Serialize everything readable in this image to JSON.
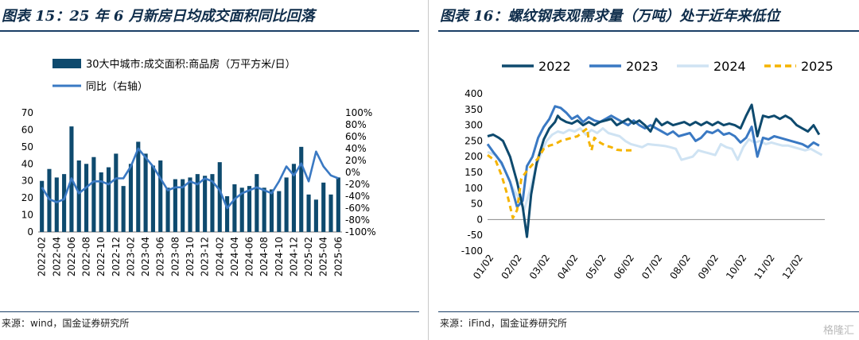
{
  "left": {
    "title": "图表 15：25 年 6 月新房日均成交面积同比回落",
    "source": "来源：wind，国金证券研究所",
    "chart_data": {
      "type": "bar",
      "categories": [
        "2022-02",
        "2022-03",
        "2022-04",
        "2022-05",
        "2022-06",
        "2022-07",
        "2022-08",
        "2022-09",
        "2022-10",
        "2022-11",
        "2022-12",
        "2023-01",
        "2023-02",
        "2023-03",
        "2023-04",
        "2023-05",
        "2023-06",
        "2023-07",
        "2023-08",
        "2023-09",
        "2023-10",
        "2023-11",
        "2023-12",
        "2024-01",
        "2024-02",
        "2024-03",
        "2024-04",
        "2024-05",
        "2024-06",
        "2024-07",
        "2024-08",
        "2024-09",
        "2024-10",
        "2024-11",
        "2024-12",
        "2025-01",
        "2025-02",
        "2025-03",
        "2025-04",
        "2025-05",
        "2025-06"
      ],
      "tick_labels": [
        "2022-02",
        "2022-04",
        "2022-06",
        "2022-08",
        "2022-10",
        "2022-12",
        "2023-02",
        "2023-04",
        "2023-06",
        "2023-08",
        "2023-10",
        "2023-12",
        "2024-02",
        "2024-04",
        "2024-06",
        "2024-08",
        "2024-10",
        "2024-12",
        "2025-02",
        "2025-04",
        "2025-06"
      ],
      "series": [
        {
          "name": "30大中城市:成交面积:商品房（万平方米/日）",
          "type": "bar",
          "axis": "left",
          "color": "#0e4a6e",
          "values": [
            30,
            37,
            32,
            34,
            62,
            42,
            40,
            44,
            35,
            38,
            46,
            27,
            40,
            53,
            46,
            39,
            42,
            26,
            31,
            31,
            32,
            34,
            33,
            34,
            41,
            21,
            28,
            26,
            27,
            34,
            26,
            25,
            24,
            32,
            40,
            50,
            22,
            19,
            29,
            22,
            32
          ]
        },
        {
          "name": "同比（右轴）",
          "type": "line",
          "axis": "right",
          "color": "#3a79c3",
          "values": [
            -25,
            -45,
            -50,
            -45,
            -10,
            -35,
            -25,
            -15,
            -15,
            -20,
            -10,
            -10,
            10,
            40,
            25,
            10,
            -10,
            -30,
            -25,
            -25,
            -15,
            -20,
            -10,
            -15,
            -30,
            -60,
            -45,
            -35,
            -30,
            -25,
            -30,
            -35,
            -15,
            10,
            -5,
            15,
            -15,
            35,
            10,
            -5,
            -10
          ]
        }
      ],
      "y_left": {
        "range": [
          0,
          70
        ],
        "ticks": [
          "0",
          "10",
          "20",
          "30",
          "40",
          "50",
          "60",
          "70"
        ]
      },
      "y_right": {
        "range": [
          -100,
          100
        ],
        "ticks": [
          "-100%",
          "-80%",
          "-60%",
          "-40%",
          "-20%",
          "0%",
          "20%",
          "40%",
          "60%",
          "80%",
          "100%"
        ]
      },
      "legend_placement": "top-left"
    }
  },
  "right": {
    "title": "图表 16：螺纹钢表观需求量（万吨）处于近年来低位",
    "source": "来源：iFind，国金证券研究所",
    "chart_data": {
      "type": "line",
      "x_ticks": [
        "01/02",
        "02/02",
        "03/02",
        "04/02",
        "05/02",
        "06/02",
        "07/02",
        "08/02",
        "09/02",
        "10/02",
        "11/02",
        "12/02"
      ],
      "y": {
        "range": [
          -100,
          400
        ],
        "ticks": [
          "-100",
          "-50",
          "0",
          "50",
          "100",
          "150",
          "200",
          "250",
          "300",
          "350",
          "400"
        ]
      },
      "series": [
        {
          "name": "2022",
          "color": "#0e4a6e",
          "dash": "solid",
          "points": [
            [
              0,
              265
            ],
            [
              0.2,
              270
            ],
            [
              0.4,
              260
            ],
            [
              0.55,
              250
            ],
            [
              0.8,
              200
            ],
            [
              1.05,
              120
            ],
            [
              1.25,
              40
            ],
            [
              1.4,
              -55
            ],
            [
              1.55,
              80
            ],
            [
              1.75,
              180
            ],
            [
              2,
              255
            ],
            [
              2.2,
              290
            ],
            [
              2.4,
              310
            ],
            [
              2.5,
              330
            ],
            [
              2.6,
              320
            ],
            [
              2.8,
              310
            ],
            [
              3,
              305
            ],
            [
              3.2,
              315
            ],
            [
              3.4,
              300
            ],
            [
              3.6,
              310
            ],
            [
              3.8,
              300
            ],
            [
              4,
              310
            ],
            [
              4.2,
              315
            ],
            [
              4.4,
              320
            ],
            [
              4.6,
              300
            ],
            [
              4.8,
              310
            ],
            [
              5,
              320
            ],
            [
              5.2,
              305
            ],
            [
              5.4,
              315
            ],
            [
              5.6,
              300
            ],
            [
              5.8,
              280
            ],
            [
              6,
              320
            ],
            [
              6.2,
              300
            ],
            [
              6.4,
              310
            ],
            [
              6.6,
              300
            ],
            [
              6.8,
              305
            ],
            [
              7,
              310
            ],
            [
              7.2,
              300
            ],
            [
              7.4,
              310
            ],
            [
              7.6,
              300
            ],
            [
              7.8,
              310
            ],
            [
              8,
              300
            ],
            [
              8.2,
              310
            ],
            [
              8.4,
              300
            ],
            [
              8.6,
              305
            ],
            [
              8.8,
              300
            ],
            [
              9,
              290
            ],
            [
              9.2,
              330
            ],
            [
              9.4,
              365
            ],
            [
              9.6,
              265
            ],
            [
              9.8,
              330
            ],
            [
              10,
              325
            ],
            [
              10.2,
              330
            ],
            [
              10.4,
              320
            ],
            [
              10.6,
              330
            ],
            [
              10.8,
              320
            ],
            [
              11,
              300
            ],
            [
              11.2,
              290
            ],
            [
              11.4,
              280
            ],
            [
              11.6,
              300
            ],
            [
              11.8,
              270
            ]
          ]
        },
        {
          "name": "2023",
          "color": "#3a79c3",
          "dash": "solid",
          "points": [
            [
              0,
              240
            ],
            [
              0.2,
              215
            ],
            [
              0.5,
              180
            ],
            [
              0.8,
              120
            ],
            [
              1.05,
              40
            ],
            [
              1.25,
              60
            ],
            [
              1.4,
              170
            ],
            [
              1.6,
              200
            ],
            [
              1.8,
              260
            ],
            [
              2,
              295
            ],
            [
              2.2,
              320
            ],
            [
              2.4,
              360
            ],
            [
              2.6,
              355
            ],
            [
              2.8,
              340
            ],
            [
              3,
              320
            ],
            [
              3.2,
              330
            ],
            [
              3.4,
              310
            ],
            [
              3.6,
              325
            ],
            [
              3.8,
              315
            ],
            [
              4,
              310
            ],
            [
              4.2,
              320
            ],
            [
              4.4,
              330
            ],
            [
              4.6,
              320
            ],
            [
              4.8,
              310
            ],
            [
              5,
              300
            ],
            [
              5.2,
              315
            ],
            [
              5.4,
              300
            ],
            [
              5.6,
              290
            ],
            [
              5.8,
              300
            ],
            [
              6,
              290
            ],
            [
              6.2,
              280
            ],
            [
              6.4,
              270
            ],
            [
              6.6,
              280
            ],
            [
              6.8,
              265
            ],
            [
              7,
              270
            ],
            [
              7.2,
              275
            ],
            [
              7.4,
              250
            ],
            [
              7.6,
              260
            ],
            [
              7.8,
              280
            ],
            [
              8,
              275
            ],
            [
              8.2,
              285
            ],
            [
              8.4,
              270
            ],
            [
              8.6,
              275
            ],
            [
              8.8,
              265
            ],
            [
              9,
              245
            ],
            [
              9.2,
              260
            ],
            [
              9.4,
              295
            ],
            [
              9.6,
              200
            ],
            [
              9.8,
              260
            ],
            [
              10,
              255
            ],
            [
              10.2,
              265
            ],
            [
              10.4,
              260
            ],
            [
              10.6,
              255
            ],
            [
              10.8,
              250
            ],
            [
              11,
              245
            ],
            [
              11.2,
              240
            ],
            [
              11.4,
              230
            ],
            [
              11.6,
              245
            ],
            [
              11.8,
              235
            ]
          ]
        },
        {
          "name": "2024",
          "color": "#cfe3f3",
          "dash": "solid",
          "points": [
            [
              0,
              215
            ],
            [
              0.3,
              205
            ],
            [
              0.6,
              160
            ],
            [
              0.9,
              100
            ],
            [
              1.1,
              70
            ],
            [
              1.3,
              30
            ],
            [
              1.5,
              90
            ],
            [
              1.7,
              160
            ],
            [
              1.9,
              210
            ],
            [
              2.1,
              250
            ],
            [
              2.3,
              270
            ],
            [
              2.5,
              280
            ],
            [
              2.7,
              275
            ],
            [
              2.9,
              285
            ],
            [
              3.1,
              280
            ],
            [
              3.3,
              290
            ],
            [
              3.5,
              270
            ],
            [
              3.7,
              285
            ],
            [
              3.9,
              275
            ],
            [
              4.1,
              290
            ],
            [
              4.3,
              275
            ],
            [
              4.5,
              270
            ],
            [
              4.7,
              265
            ],
            [
              4.9,
              250
            ],
            [
              5.1,
              240
            ],
            [
              5.3,
              235
            ],
            [
              5.5,
              230
            ],
            [
              5.7,
              240
            ],
            [
              5.9,
              238
            ],
            [
              6.1,
              236
            ],
            [
              6.3,
              234
            ],
            [
              6.5,
              230
            ],
            [
              6.7,
              225
            ],
            [
              6.9,
              190
            ],
            [
              7.1,
              195
            ],
            [
              7.3,
              200
            ],
            [
              7.5,
              220
            ],
            [
              7.7,
              215
            ],
            [
              7.9,
              210
            ],
            [
              8.1,
              205
            ],
            [
              8.3,
              240
            ],
            [
              8.5,
              230
            ],
            [
              8.7,
              225
            ],
            [
              8.9,
              190
            ],
            [
              9.1,
              230
            ],
            [
              9.3,
              255
            ],
            [
              9.5,
              245
            ],
            [
              9.7,
              250
            ],
            [
              9.9,
              240
            ],
            [
              10.1,
              245
            ],
            [
              10.3,
              240
            ],
            [
              10.5,
              235
            ],
            [
              10.7,
              235
            ],
            [
              10.9,
              230
            ],
            [
              11.1,
              225
            ],
            [
              11.3,
              220
            ],
            [
              11.5,
              225
            ],
            [
              11.7,
              215
            ],
            [
              11.9,
              205
            ]
          ]
        },
        {
          "name": "2025",
          "color": "#f5b400",
          "dash": "dashed",
          "points": [
            [
              0,
              205
            ],
            [
              0.3,
              185
            ],
            [
              0.5,
              140
            ],
            [
              0.7,
              80
            ],
            [
              0.9,
              5
            ],
            [
              1.05,
              30
            ],
            [
              1.2,
              130
            ],
            [
              1.4,
              155
            ],
            [
              1.6,
              175
            ],
            [
              1.8,
              195
            ],
            [
              2,
              225
            ],
            [
              2.2,
              235
            ],
            [
              2.4,
              240
            ],
            [
              2.6,
              250
            ],
            [
              2.8,
              255
            ],
            [
              3,
              260
            ],
            [
              3.2,
              265
            ],
            [
              3.4,
              280
            ],
            [
              3.55,
              290
            ],
            [
              3.6,
              250
            ],
            [
              3.7,
              220
            ],
            [
              3.8,
              260
            ],
            [
              4,
              245
            ],
            [
              4.2,
              235
            ],
            [
              4.4,
              230
            ],
            [
              4.6,
              222
            ],
            [
              4.8,
              220
            ],
            [
              5,
              220
            ],
            [
              5.2,
              220
            ]
          ]
        }
      ],
      "legend_placement": "top"
    }
  },
  "watermark": "格隆汇"
}
